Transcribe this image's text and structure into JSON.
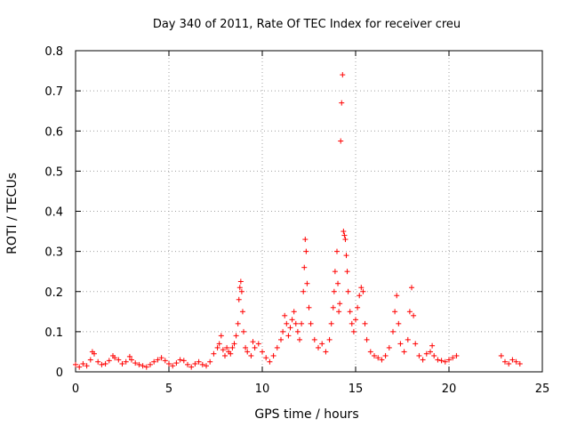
{
  "chart_data": {
    "type": "scatter",
    "title": "Day 340 of 2011, Rate Of TEC Index for receiver creu",
    "xlabel": "GPS time / hours",
    "ylabel": "ROTI / TECUs",
    "xlim": [
      0,
      25
    ],
    "ylim": [
      0,
      0.8
    ],
    "xticks": [
      "0",
      "5",
      "10",
      "15",
      "20",
      "25"
    ],
    "yticks": [
      "0",
      "0.1",
      "0.2",
      "0.3",
      "0.4",
      "0.5",
      "0.6",
      "0.7",
      "0.8"
    ],
    "xtick_values": [
      0,
      5,
      10,
      15,
      20,
      25
    ],
    "ytick_values": [
      0,
      0.1,
      0.2,
      0.3,
      0.4,
      0.5,
      0.6,
      0.7,
      0.8
    ],
    "grid": true,
    "marker": "+",
    "color": "#ff0000",
    "series": [
      {
        "points": [
          [
            0.0,
            0.018
          ],
          [
            0.2,
            0.012
          ],
          [
            0.4,
            0.02
          ],
          [
            0.6,
            0.015
          ],
          [
            0.8,
            0.03
          ],
          [
            0.9,
            0.05
          ],
          [
            1.0,
            0.045
          ],
          [
            1.2,
            0.025
          ],
          [
            1.4,
            0.018
          ],
          [
            1.6,
            0.02
          ],
          [
            1.8,
            0.028
          ],
          [
            2.0,
            0.04
          ],
          [
            2.1,
            0.035
          ],
          [
            2.3,
            0.03
          ],
          [
            2.5,
            0.02
          ],
          [
            2.7,
            0.025
          ],
          [
            2.9,
            0.038
          ],
          [
            3.0,
            0.03
          ],
          [
            3.2,
            0.022
          ],
          [
            3.4,
            0.018
          ],
          [
            3.6,
            0.015
          ],
          [
            3.8,
            0.012
          ],
          [
            4.0,
            0.018
          ],
          [
            4.2,
            0.025
          ],
          [
            4.4,
            0.03
          ],
          [
            4.6,
            0.035
          ],
          [
            4.8,
            0.028
          ],
          [
            5.0,
            0.02
          ],
          [
            5.2,
            0.015
          ],
          [
            5.4,
            0.022
          ],
          [
            5.6,
            0.03
          ],
          [
            5.8,
            0.028
          ],
          [
            6.0,
            0.018
          ],
          [
            6.2,
            0.012
          ],
          [
            6.4,
            0.02
          ],
          [
            6.6,
            0.025
          ],
          [
            6.8,
            0.018
          ],
          [
            7.0,
            0.015
          ],
          [
            7.2,
            0.025
          ],
          [
            7.4,
            0.045
          ],
          [
            7.6,
            0.06
          ],
          [
            7.7,
            0.07
          ],
          [
            7.8,
            0.09
          ],
          [
            7.9,
            0.055
          ],
          [
            8.0,
            0.04
          ],
          [
            8.1,
            0.06
          ],
          [
            8.2,
            0.05
          ],
          [
            8.3,
            0.045
          ],
          [
            8.4,
            0.06
          ],
          [
            8.5,
            0.07
          ],
          [
            8.6,
            0.09
          ],
          [
            8.7,
            0.12
          ],
          [
            8.75,
            0.18
          ],
          [
            8.8,
            0.21
          ],
          [
            8.85,
            0.225
          ],
          [
            8.9,
            0.2
          ],
          [
            8.95,
            0.15
          ],
          [
            9.0,
            0.1
          ],
          [
            9.1,
            0.06
          ],
          [
            9.2,
            0.05
          ],
          [
            9.4,
            0.04
          ],
          [
            9.5,
            0.075
          ],
          [
            9.6,
            0.06
          ],
          [
            9.8,
            0.07
          ],
          [
            10.0,
            0.05
          ],
          [
            10.2,
            0.035
          ],
          [
            10.4,
            0.025
          ],
          [
            10.6,
            0.04
          ],
          [
            10.8,
            0.06
          ],
          [
            11.0,
            0.08
          ],
          [
            11.1,
            0.1
          ],
          [
            11.2,
            0.14
          ],
          [
            11.3,
            0.12
          ],
          [
            11.4,
            0.09
          ],
          [
            11.5,
            0.11
          ],
          [
            11.6,
            0.13
          ],
          [
            11.7,
            0.15
          ],
          [
            11.8,
            0.12
          ],
          [
            11.9,
            0.1
          ],
          [
            12.0,
            0.08
          ],
          [
            12.1,
            0.12
          ],
          [
            12.2,
            0.2
          ],
          [
            12.25,
            0.26
          ],
          [
            12.3,
            0.33
          ],
          [
            12.35,
            0.3
          ],
          [
            12.4,
            0.22
          ],
          [
            12.5,
            0.16
          ],
          [
            12.6,
            0.12
          ],
          [
            12.8,
            0.08
          ],
          [
            13.0,
            0.06
          ],
          [
            13.2,
            0.07
          ],
          [
            13.4,
            0.05
          ],
          [
            13.6,
            0.08
          ],
          [
            13.7,
            0.12
          ],
          [
            13.8,
            0.16
          ],
          [
            13.85,
            0.2
          ],
          [
            13.9,
            0.25
          ],
          [
            14.0,
            0.3
          ],
          [
            14.05,
            0.22
          ],
          [
            14.1,
            0.15
          ],
          [
            14.15,
            0.17
          ],
          [
            14.2,
            0.575
          ],
          [
            14.25,
            0.67
          ],
          [
            14.3,
            0.74
          ],
          [
            14.35,
            0.35
          ],
          [
            14.4,
            0.34
          ],
          [
            14.45,
            0.33
          ],
          [
            14.5,
            0.29
          ],
          [
            14.55,
            0.25
          ],
          [
            14.6,
            0.2
          ],
          [
            14.7,
            0.15
          ],
          [
            14.8,
            0.12
          ],
          [
            14.9,
            0.1
          ],
          [
            15.0,
            0.13
          ],
          [
            15.1,
            0.16
          ],
          [
            15.2,
            0.19
          ],
          [
            15.3,
            0.21
          ],
          [
            15.4,
            0.2
          ],
          [
            15.5,
            0.12
          ],
          [
            15.6,
            0.08
          ],
          [
            15.8,
            0.05
          ],
          [
            16.0,
            0.04
          ],
          [
            16.2,
            0.035
          ],
          [
            16.4,
            0.03
          ],
          [
            16.6,
            0.04
          ],
          [
            16.8,
            0.06
          ],
          [
            17.0,
            0.1
          ],
          [
            17.1,
            0.15
          ],
          [
            17.2,
            0.19
          ],
          [
            17.3,
            0.12
          ],
          [
            17.4,
            0.07
          ],
          [
            17.6,
            0.05
          ],
          [
            17.8,
            0.08
          ],
          [
            17.9,
            0.15
          ],
          [
            18.0,
            0.21
          ],
          [
            18.1,
            0.14
          ],
          [
            18.2,
            0.07
          ],
          [
            18.4,
            0.04
          ],
          [
            18.6,
            0.03
          ],
          [
            18.8,
            0.045
          ],
          [
            19.0,
            0.05
          ],
          [
            19.1,
            0.065
          ],
          [
            19.2,
            0.04
          ],
          [
            19.4,
            0.03
          ],
          [
            19.6,
            0.028
          ],
          [
            19.8,
            0.025
          ],
          [
            20.0,
            0.03
          ],
          [
            20.2,
            0.035
          ],
          [
            20.4,
            0.04
          ],
          [
            22.8,
            0.04
          ],
          [
            23.0,
            0.025
          ],
          [
            23.2,
            0.02
          ],
          [
            23.4,
            0.03
          ],
          [
            23.6,
            0.025
          ],
          [
            23.8,
            0.02
          ]
        ]
      }
    ]
  }
}
